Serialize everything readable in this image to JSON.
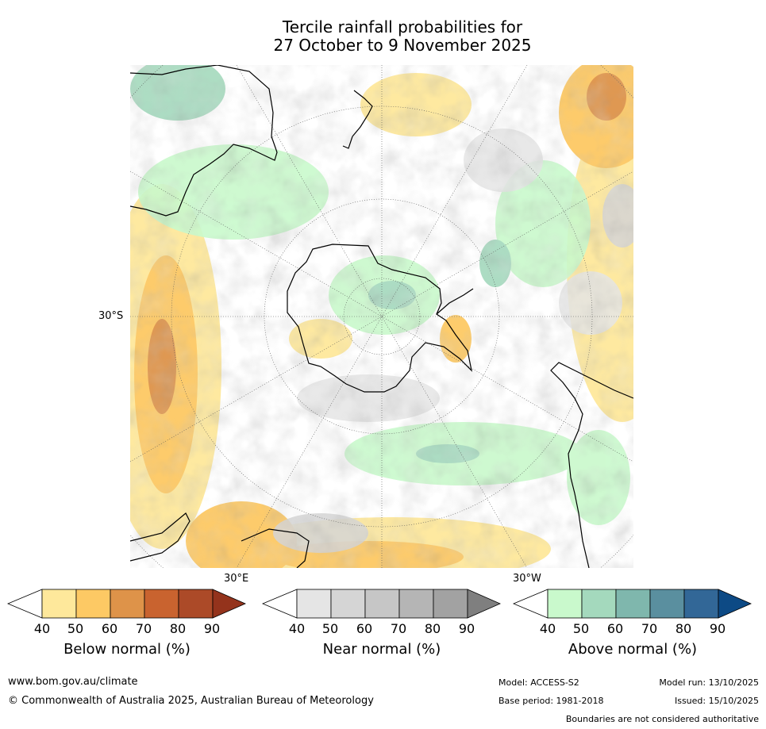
{
  "title": {
    "line1": "Tercile rainfall probabilities for",
    "line2": "27 October to 9 November 2025"
  },
  "map": {
    "projection": "south-polar-stereographic",
    "labels": {
      "lat": "30°S",
      "lon_east": "30°E",
      "lon_west": "30°W"
    }
  },
  "legends": [
    {
      "title": "Below normal (%)",
      "ticks": [
        "40",
        "50",
        "60",
        "70",
        "80",
        "90"
      ],
      "colors": [
        "#ffffff",
        "#fee89b",
        "#fdc964",
        "#de9349",
        "#c9632f",
        "#ac4a28",
        "#94331c"
      ]
    },
    {
      "title": "Near normal (%)",
      "ticks": [
        "40",
        "50",
        "60",
        "70",
        "80",
        "90"
      ],
      "colors": [
        "#ffffff",
        "#e5e5e5",
        "#d5d5d5",
        "#c6c6c6",
        "#b5b5b5",
        "#a2a2a2",
        "#7f7f7f"
      ]
    },
    {
      "title": "Above normal (%)",
      "ticks": [
        "40",
        "50",
        "60",
        "70",
        "80",
        "90"
      ],
      "colors": [
        "#ffffff",
        "#c9f9cc",
        "#a4d9bd",
        "#7fb7ad",
        "#5a8f9f",
        "#326797",
        "#0d4a85"
      ]
    }
  ],
  "footer": {
    "website": "www.bom.gov.au/climate",
    "copyright": "© Commonwealth of Australia 2025, Australian Bureau of Meteorology",
    "model": "Model: ACCESS-S2",
    "base_period": "Base period: 1981-2018",
    "model_run": "Model run: 13/10/2025",
    "issued": "Issued: 15/10/2025",
    "disclaimer": "Boundaries are not considered authoritative"
  }
}
